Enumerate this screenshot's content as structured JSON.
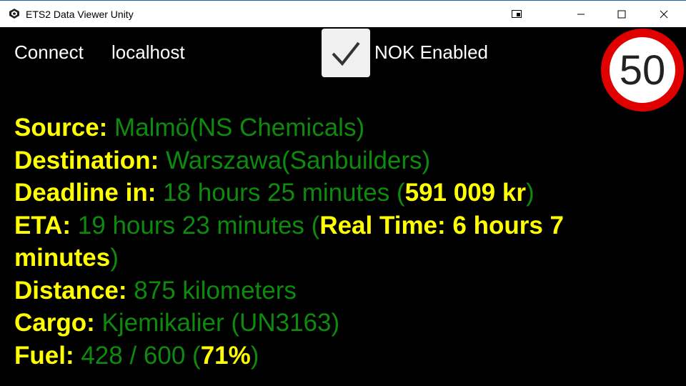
{
  "window": {
    "title": "ETS2 Data Viewer Unity",
    "icons": {
      "app": "unity-icon",
      "snap": "snap-icon",
      "minimize": "minimize-icon",
      "maximize": "maximize-icon",
      "close": "close-icon"
    }
  },
  "toolbar": {
    "connect_label": "Connect",
    "host_value": "localhost",
    "nok_checked": true,
    "nok_label": "NOK Enabled"
  },
  "speed_limit": {
    "value": "50"
  },
  "info": {
    "source": {
      "label": "Source:",
      "value": "Malmö(NS Chemicals)"
    },
    "destination": {
      "label": "Destination:",
      "value": "Warszawa(Sanbuilders)"
    },
    "deadline": {
      "label": "Deadline in:",
      "value": "18 hours 25 minutes (",
      "reward": "591 009 kr",
      "close": ")"
    },
    "eta": {
      "label": "ETA:",
      "value": "19 hours 23 minutes (",
      "real_time": "Real Time: 6 hours 7 minutes",
      "close": ")"
    },
    "distance": {
      "label": "Distance:",
      "value": "875 kilometers"
    },
    "cargo": {
      "label": "Cargo:",
      "value": "Kjemikalier (UN3163)"
    },
    "fuel": {
      "label": "Fuel:",
      "value": "428 / 600 (",
      "percent": "71%",
      "close": ")"
    }
  },
  "colors": {
    "label": "#ffff00",
    "value": "#0e8a0e",
    "background": "#000000",
    "sign_border": "#e00000"
  }
}
